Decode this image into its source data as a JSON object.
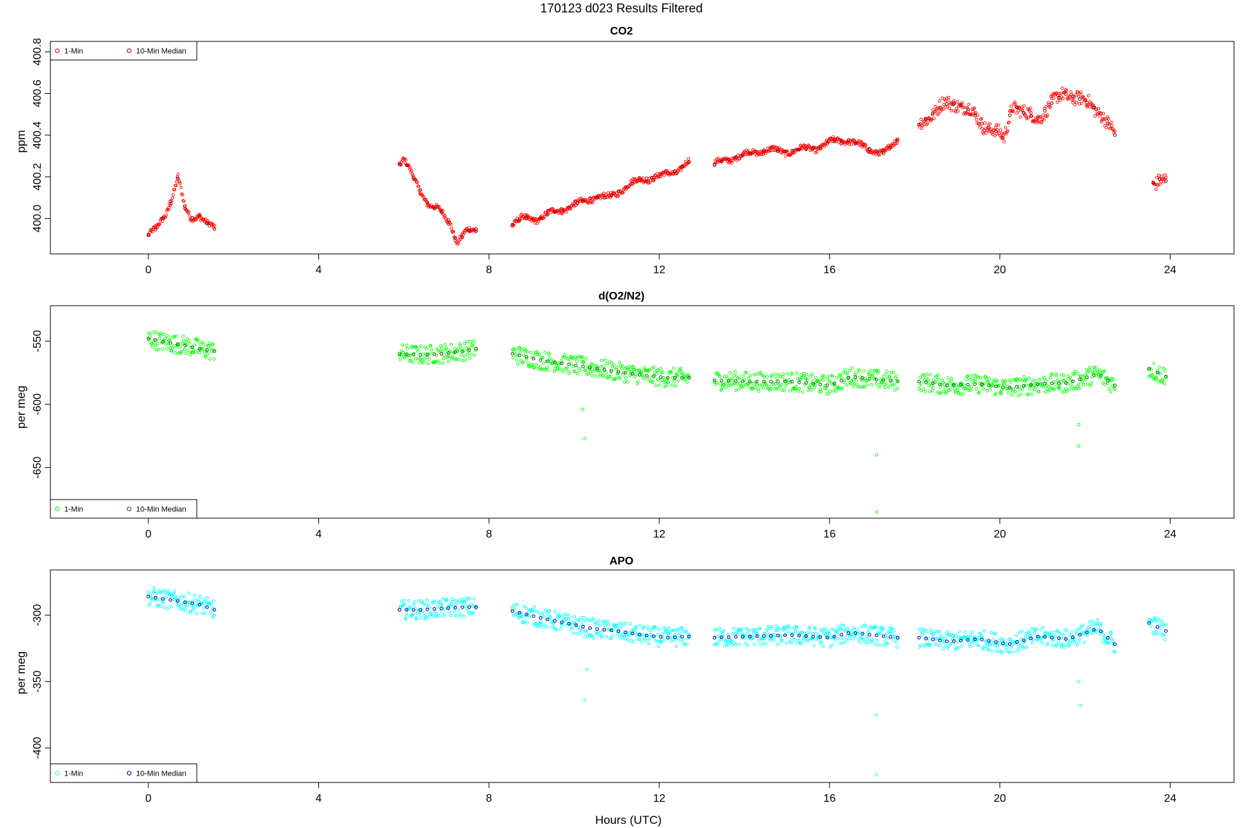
{
  "figure_title": "170123   d023   Results Filtered",
  "xlabel": "Hours (UTC)",
  "chart_data": [
    {
      "type": "scatter",
      "title": "CO2",
      "ylabel": "ppm",
      "xlim": [
        -2.3,
        25.5
      ],
      "ylim": [
        399.83,
        400.85
      ],
      "xticks": [
        0,
        4,
        8,
        12,
        16,
        20,
        24
      ],
      "yticks": [
        400.0,
        400.2,
        400.4,
        400.6,
        400.8
      ],
      "ytick_labels": [
        "400.0",
        "400.2",
        "400.4",
        "400.6",
        "400.8"
      ],
      "legend": {
        "position": "top-left",
        "entries": [
          "1-Min",
          "10-Min Median"
        ]
      },
      "colors": {
        "one_min": "#ff0000",
        "median": "#8b0000"
      },
      "segments": [
        {
          "x": [
            0.0,
            0.2,
            0.4,
            0.55,
            0.7,
            0.85,
            1.0,
            1.2,
            1.4,
            1.55
          ],
          "y": [
            399.92,
            399.95,
            400.02,
            400.1,
            400.2,
            400.05,
            400.0,
            400.02,
            399.97,
            399.95
          ]
        },
        {
          "x": [
            5.9,
            6.0,
            6.3,
            6.6,
            6.9,
            7.1,
            7.25,
            7.5,
            7.7
          ],
          "y": [
            400.26,
            400.28,
            400.17,
            400.06,
            400.03,
            399.98,
            399.88,
            399.94,
            399.95
          ]
        },
        {
          "x": [
            8.55,
            8.8,
            9.2,
            9.6,
            10.0,
            10.4,
            10.8,
            11.2,
            11.6,
            12.0,
            12.4,
            12.7
          ],
          "y": [
            399.97,
            400.0,
            400.0,
            400.04,
            400.06,
            400.1,
            400.1,
            400.15,
            400.19,
            400.2,
            400.23,
            400.27
          ]
        },
        {
          "x": [
            13.3,
            13.7,
            14.1,
            14.5,
            14.9,
            15.3,
            15.7,
            16.1,
            16.4,
            16.7,
            17.0,
            17.3,
            17.6
          ],
          "y": [
            400.26,
            400.29,
            400.31,
            400.33,
            400.32,
            400.33,
            400.34,
            400.37,
            400.38,
            400.35,
            400.33,
            400.31,
            400.38
          ]
        },
        {
          "x": [
            18.1,
            18.4,
            18.7,
            19.0,
            19.3,
            19.6,
            19.9,
            20.1,
            20.3,
            20.6,
            20.9,
            21.2,
            21.5,
            21.8,
            22.1,
            22.4,
            22.7
          ],
          "y": [
            400.45,
            400.5,
            400.55,
            400.55,
            400.52,
            400.45,
            400.42,
            400.38,
            400.55,
            400.5,
            400.48,
            400.55,
            400.6,
            400.58,
            400.55,
            400.5,
            400.4
          ]
        },
        {
          "x": [
            23.6,
            23.75,
            23.9
          ],
          "y": [
            400.17,
            400.19,
            400.18
          ]
        }
      ]
    },
    {
      "type": "scatter",
      "title": "d(O2/N2)",
      "ylabel": "per meg",
      "xlim": [
        -2.3,
        25.5
      ],
      "ylim": [
        -690,
        -522
      ],
      "xticks": [
        0,
        4,
        8,
        12,
        16,
        20,
        24
      ],
      "yticks": [
        -650,
        -600,
        -550
      ],
      "ytick_labels": [
        "-650",
        "-600",
        "-550"
      ],
      "legend": {
        "position": "bottom-left",
        "entries": [
          "1-Min",
          "10-Min Median"
        ]
      },
      "colors": {
        "one_min": "#00ff00",
        "median": "#006400"
      },
      "segments": [
        {
          "x": [
            0.0,
            0.4,
            0.8,
            1.2,
            1.55
          ],
          "y": [
            -548,
            -551,
            -553,
            -556,
            -558
          ]
        },
        {
          "x": [
            5.9,
            6.4,
            6.9,
            7.4,
            7.7
          ],
          "y": [
            -560,
            -561,
            -560,
            -558,
            -556
          ]
        },
        {
          "x": [
            8.55,
            9.2,
            9.8,
            10.4,
            11.0,
            11.6,
            12.2,
            12.7
          ],
          "y": [
            -560,
            -565,
            -568,
            -571,
            -574,
            -577,
            -579,
            -579
          ]
        },
        {
          "x": [
            13.3,
            14.2,
            15.1,
            16.0,
            16.5,
            17.0,
            17.6
          ],
          "y": [
            -581,
            -582,
            -582,
            -585,
            -578,
            -580,
            -582
          ]
        },
        {
          "x": [
            18.1,
            18.8,
            19.5,
            20.2,
            20.9,
            21.6,
            22.3,
            22.7
          ],
          "y": [
            -582,
            -585,
            -584,
            -587,
            -584,
            -583,
            -576,
            -585
          ]
        },
        {
          "x": [
            23.5,
            23.9
          ],
          "y": [
            -572,
            -578
          ]
        }
      ],
      "outliers": [
        {
          "x": 10.25,
          "y": -627
        },
        {
          "x": 10.2,
          "y": -604
        },
        {
          "x": 17.1,
          "y": -640
        },
        {
          "x": 17.1,
          "y": -685
        },
        {
          "x": 21.85,
          "y": -633
        },
        {
          "x": 21.85,
          "y": -616
        }
      ]
    },
    {
      "type": "scatter",
      "title": "APO",
      "ylabel": "per meg",
      "xlim": [
        -2.3,
        25.5
      ],
      "ylim": [
        -426,
        -266
      ],
      "xticks": [
        0,
        4,
        8,
        12,
        16,
        20,
        24
      ],
      "xtick_labels": [
        "0",
        "4",
        "8",
        "12",
        "16",
        "20",
        "24"
      ],
      "yticks": [
        -400,
        -350,
        -300
      ],
      "ytick_labels": [
        "-400",
        "-350",
        "-300"
      ],
      "legend": {
        "position": "bottom-left",
        "entries": [
          "1-Min",
          "10-Min Median"
        ]
      },
      "colors": {
        "one_min": "#00ffff",
        "median": "#00008b"
      },
      "segments": [
        {
          "x": [
            0.0,
            0.4,
            0.8,
            1.2,
            1.55
          ],
          "y": [
            -286,
            -288,
            -290,
            -292,
            -296
          ]
        },
        {
          "x": [
            5.9,
            6.4,
            6.9,
            7.4,
            7.7
          ],
          "y": [
            -296,
            -296,
            -295,
            -294,
            -294
          ]
        },
        {
          "x": [
            8.55,
            9.2,
            9.8,
            10.4,
            11.0,
            11.6,
            12.2,
            12.7
          ],
          "y": [
            -297,
            -302,
            -306,
            -310,
            -312,
            -315,
            -317,
            -316
          ]
        },
        {
          "x": [
            13.3,
            14.2,
            15.1,
            16.0,
            16.5,
            17.0,
            17.6
          ],
          "y": [
            -317,
            -316,
            -315,
            -317,
            -313,
            -315,
            -317
          ]
        },
        {
          "x": [
            18.1,
            18.8,
            19.5,
            20.2,
            20.9,
            21.6,
            22.3,
            22.7
          ],
          "y": [
            -317,
            -320,
            -318,
            -322,
            -316,
            -318,
            -310,
            -322
          ]
        },
        {
          "x": [
            23.5,
            23.9
          ],
          "y": [
            -306,
            -312
          ]
        }
      ],
      "outliers": [
        {
          "x": 10.25,
          "y": -364
        },
        {
          "x": 10.3,
          "y": -341
        },
        {
          "x": 17.1,
          "y": -375
        },
        {
          "x": 17.1,
          "y": -420
        },
        {
          "x": 21.9,
          "y": -368
        },
        {
          "x": 21.85,
          "y": -350
        }
      ]
    }
  ]
}
